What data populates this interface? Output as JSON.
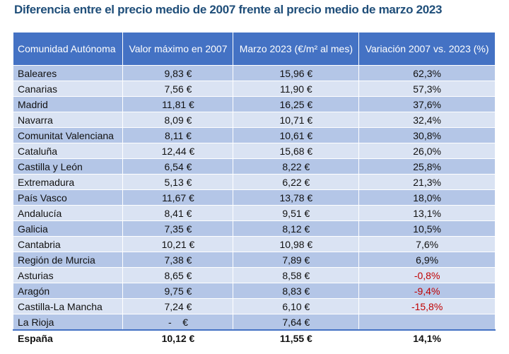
{
  "title": "Diferencia entre el precio medio de 2007 frente al precio medio de marzo 2023",
  "table": {
    "header": [
      "Comunidad Autónoma",
      "Valor máximo en 2007",
      "Marzo 2023 (€/m² al mes)",
      "Variación 2007 vs. 2023 (%)"
    ],
    "rows": [
      [
        "Baleares",
        "9,83 €",
        "15,96 €",
        "62,3%"
      ],
      [
        "Canarias",
        "7,56 €",
        "11,90 €",
        "57,3%"
      ],
      [
        "Madrid",
        "11,81 €",
        "16,25 €",
        "37,6%"
      ],
      [
        "Navarra",
        "8,09 €",
        "10,71 €",
        "32,4%"
      ],
      [
        "Comunitat Valenciana",
        "8,11 €",
        "10,61 €",
        "30,8%"
      ],
      [
        "Cataluña",
        "12,44 €",
        "15,68 €",
        "26,0%"
      ],
      [
        "Castilla y León",
        "6,54 €",
        "8,22 €",
        "25,8%"
      ],
      [
        "Extremadura",
        "5,13 €",
        "6,22 €",
        "21,3%"
      ],
      [
        "País Vasco",
        "11,67 €",
        "13,78 €",
        "18,0%"
      ],
      [
        "Andalucía",
        "8,41 €",
        "9,51 €",
        "13,1%"
      ],
      [
        "Galicia",
        "7,35 €",
        "8,12 €",
        "10,5%"
      ],
      [
        "Cantabria",
        "10,21 €",
        "10,98 €",
        "7,6%"
      ],
      [
        "Región de Murcia",
        "7,38 €",
        "7,89 €",
        "6,9%"
      ],
      [
        "Asturias",
        "8,65 €",
        "8,58 €",
        "-0,8%"
      ],
      [
        "Aragón",
        "9,75 €",
        "8,83 €",
        "-9,4%"
      ],
      [
        "Castilla-La Mancha",
        "7,24 €",
        "6,10 €",
        "-15,8%"
      ],
      [
        "La Rioja",
        "-    €",
        "7,64 €",
        null
      ]
    ],
    "total": [
      "España",
      "10,12 €",
      "11,55 €",
      "14,1%"
    ]
  }
}
